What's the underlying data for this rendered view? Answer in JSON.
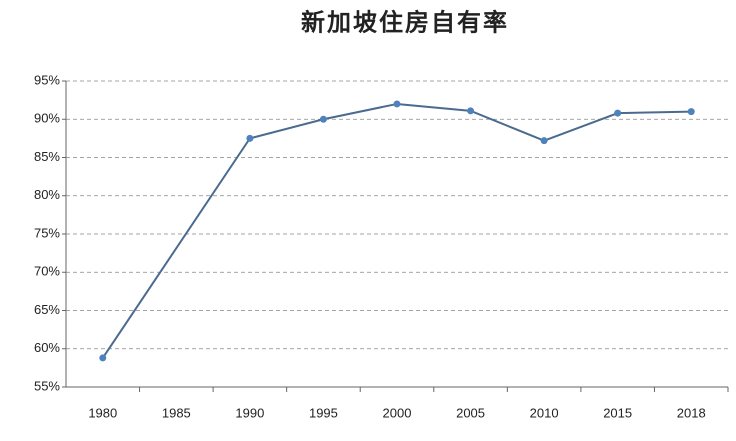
{
  "chart_data": {
    "type": "line",
    "title": "新加坡住房自有率",
    "categories": [
      "1980",
      "1985",
      "1990",
      "1995",
      "2000",
      "2005",
      "2010",
      "2015",
      "2018"
    ],
    "series": [
      {
        "color": "#4a6a8f",
        "values": [
          58.8,
          null,
          87.5,
          90.0,
          92.0,
          91.1,
          87.2,
          90.8,
          91.0
        ]
      }
    ],
    "marker_color": "#4f81bd",
    "ylim": [
      55,
      95
    ],
    "yticks": [
      {
        "value": 55,
        "label": "55%"
      },
      {
        "value": 60,
        "label": "60%"
      },
      {
        "value": 65,
        "label": "65%"
      },
      {
        "value": 70,
        "label": "70%"
      },
      {
        "value": 75,
        "label": "75%"
      },
      {
        "value": 80,
        "label": "80%"
      },
      {
        "value": 85,
        "label": "85%"
      },
      {
        "value": 90,
        "label": "90%"
      },
      {
        "value": 95,
        "label": "95%"
      }
    ],
    "grid": true
  }
}
